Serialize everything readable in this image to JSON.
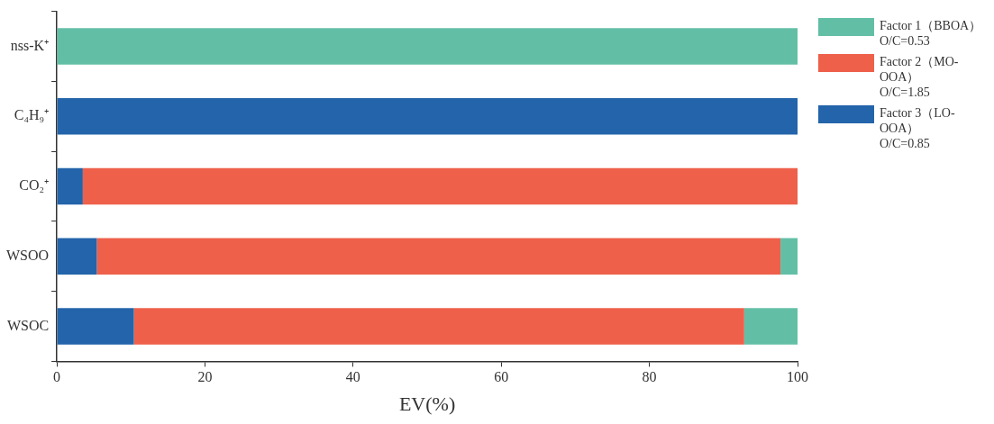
{
  "chart_data": {
    "type": "bar",
    "orientation": "horizontal",
    "stacked": true,
    "categories": [
      "nss-K⁺",
      "C₄H₉⁺",
      "CO₂⁺",
      "WSOO",
      "WSOC"
    ],
    "series": [
      {
        "name": "Factor 3（LO-OOA）\nO/C=0.85",
        "color": "#2364aa",
        "values": [
          0,
          100,
          3.5,
          5.4,
          10.4
        ]
      },
      {
        "name": "Factor 2（MO-OOA）\nO/C=1.85",
        "color": "#ee604a",
        "values": [
          0,
          0,
          96.5,
          92.3,
          82.4
        ]
      },
      {
        "name": "Factor 1（BBOA）\nO/C=0.53",
        "color": "#62bfa6",
        "values": [
          100,
          0,
          0,
          2.3,
          7.2
        ]
      }
    ],
    "xlabel": "EV(%)",
    "xlim": [
      0,
      100
    ],
    "xticks": [
      0,
      20,
      40,
      60,
      80,
      100
    ],
    "grid": false,
    "legend": "right"
  }
}
